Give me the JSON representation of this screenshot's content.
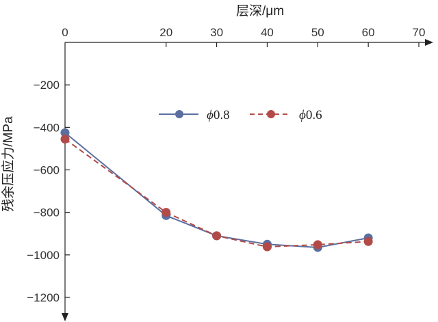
{
  "chart_data": {
    "type": "line",
    "xlabel": "层深/μm",
    "ylabel": "残余压应力/MPa",
    "xlim": [
      0,
      70
    ],
    "ylim": [
      -1200,
      0
    ],
    "x_ticks": [
      0,
      20,
      30,
      40,
      50,
      60,
      70
    ],
    "x_tick_labels": [
      "0",
      "20",
      "30",
      "40",
      "50",
      "60",
      "70"
    ],
    "y_ticks": [
      -200,
      -400,
      -600,
      -800,
      -1000,
      -1200
    ],
    "y_tick_labels": [
      "−200",
      "−400",
      "−600",
      "−800",
      "−1000",
      "−1200"
    ],
    "x_axis_position": "top",
    "grid": false,
    "legend_position": "upper-center",
    "series": [
      {
        "name": "ϕ0.8",
        "name_symbol": "ϕ",
        "name_value": "0.8",
        "color": "#5a6fa0",
        "dash": "solid",
        "x": [
          0,
          20,
          30,
          40,
          50,
          60
        ],
        "y": [
          -425,
          -815,
          -910,
          -950,
          -965,
          -920
        ]
      },
      {
        "name": "ϕ0.6",
        "name_symbol": "ϕ",
        "name_value": "0.6",
        "color": "#b24a48",
        "dash": "dashed",
        "x": [
          0,
          20,
          30,
          40,
          50,
          60
        ],
        "y": [
          -455,
          -800,
          -910,
          -962,
          -952,
          -937
        ]
      }
    ]
  }
}
